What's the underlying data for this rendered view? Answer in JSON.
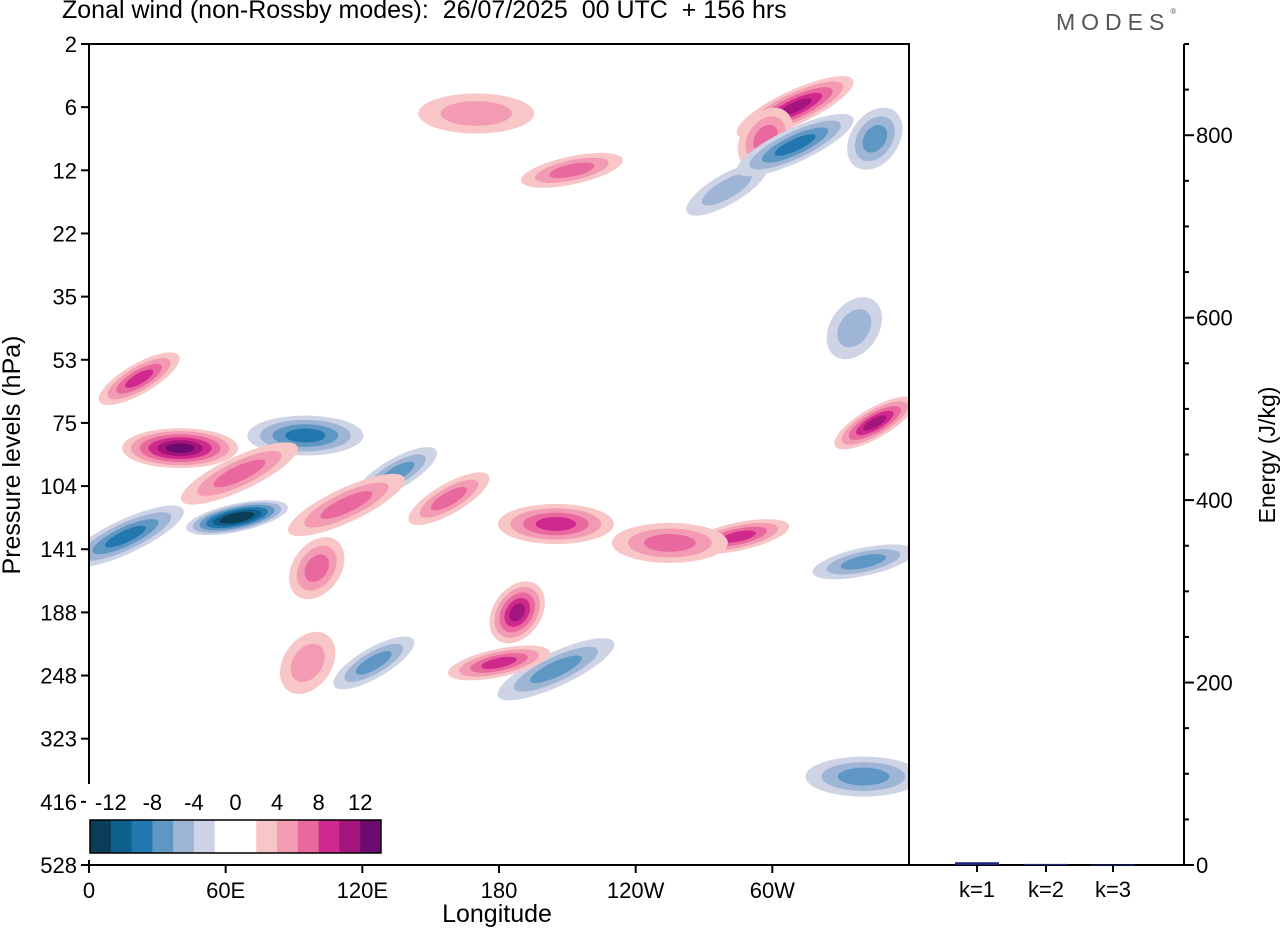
{
  "header": {
    "title": "Zonal wind (non-Rossby modes):  26/07/2025  00 UTC  + 156 hrs",
    "logo_text": "MODES",
    "logo_mark": "®"
  },
  "colors": {
    "neg": [
      "#0a3d56",
      "#0f5f8c",
      "#2277ae",
      "#5f97c4",
      "#9fb5d6",
      "#cfd3e6"
    ],
    "pos": [
      "#f8c6c6",
      "#f29bb3",
      "#e9699e",
      "#d0298d",
      "#a4147d",
      "#6c0a70"
    ],
    "bar": "#1a237e",
    "axis": "#000000"
  },
  "chart_data": [
    {
      "type": "heatmap",
      "title": "Zonal wind (non-Rossby modes):  26/07/2025  00 UTC  + 156 hrs",
      "xlabel": "Longitude",
      "ylabel": "Pressure levels (hPa)",
      "x_ticks": [
        "0",
        "60E",
        "120E",
        "180",
        "120W",
        "60W"
      ],
      "x_tick_lons": [
        0,
        60,
        120,
        180,
        240,
        300
      ],
      "xlim": [
        0,
        360
      ],
      "y_levels": [
        "2",
        "6",
        "12",
        "22",
        "35",
        "53",
        "75",
        "104",
        "141",
        "188",
        "248",
        "323",
        "416",
        "528"
      ],
      "colorbar": {
        "levels": [
          -12,
          -10,
          -8,
          -6,
          -4,
          -2,
          0,
          2,
          4,
          6,
          8,
          10,
          12
        ],
        "labels": [
          "-12",
          "-8",
          "-4",
          "0",
          "4",
          "8",
          "12"
        ]
      },
      "features": [
        {
          "lon": 40,
          "level": 6.4,
          "value": 13
        },
        {
          "lon": 22,
          "level": 5.3,
          "value": 9
        },
        {
          "lon": 310,
          "level": 1.0,
          "value": 11
        },
        {
          "lon": 297,
          "level": 1.5,
          "value": 6
        },
        {
          "lon": 212,
          "level": 2.0,
          "value": 6
        },
        {
          "lon": 170,
          "level": 1.1,
          "value": 4
        },
        {
          "lon": 280,
          "level": 2.3,
          "value": -4
        },
        {
          "lon": 310,
          "level": 1.6,
          "value": -9
        },
        {
          "lon": 345,
          "level": 1.5,
          "value": -6
        },
        {
          "lon": 65,
          "level": 7.5,
          "value": -14
        },
        {
          "lon": 95,
          "level": 6.2,
          "value": -9
        },
        {
          "lon": 135,
          "level": 6.8,
          "value": -7
        },
        {
          "lon": 16,
          "level": 7.8,
          "value": -9
        },
        {
          "lon": 336,
          "level": 4.5,
          "value": -5
        },
        {
          "lon": 340,
          "level": 8.2,
          "value": -6
        },
        {
          "lon": 340,
          "level": 11.6,
          "value": -7
        },
        {
          "lon": 125,
          "level": 9.8,
          "value": -6
        },
        {
          "lon": 205,
          "level": 9.9,
          "value": -6
        },
        {
          "lon": 188,
          "level": 9.0,
          "value": 11
        },
        {
          "lon": 180,
          "level": 9.8,
          "value": 9
        },
        {
          "lon": 205,
          "level": 7.6,
          "value": 9
        },
        {
          "lon": 158,
          "level": 7.2,
          "value": 6
        },
        {
          "lon": 113,
          "level": 7.3,
          "value": 6
        },
        {
          "lon": 100,
          "level": 8.3,
          "value": 7
        },
        {
          "lon": 285,
          "level": 7.8,
          "value": 9
        },
        {
          "lon": 255,
          "level": 7.9,
          "value": 6
        },
        {
          "lon": 345,
          "level": 6.0,
          "value": 11
        },
        {
          "lon": 66,
          "level": 6.8,
          "value": 6
        },
        {
          "lon": 96,
          "level": 9.8,
          "value": 5
        }
      ]
    },
    {
      "type": "bar",
      "ylabel": "Energy (J/kg)",
      "categories": [
        "k=1",
        "k=2",
        "k=3"
      ],
      "values": [
        3.0,
        1.2,
        0.5
      ],
      "ylim": [
        0,
        900
      ],
      "y_ticks": [
        "0",
        "200",
        "400",
        "600",
        "800"
      ]
    }
  ]
}
